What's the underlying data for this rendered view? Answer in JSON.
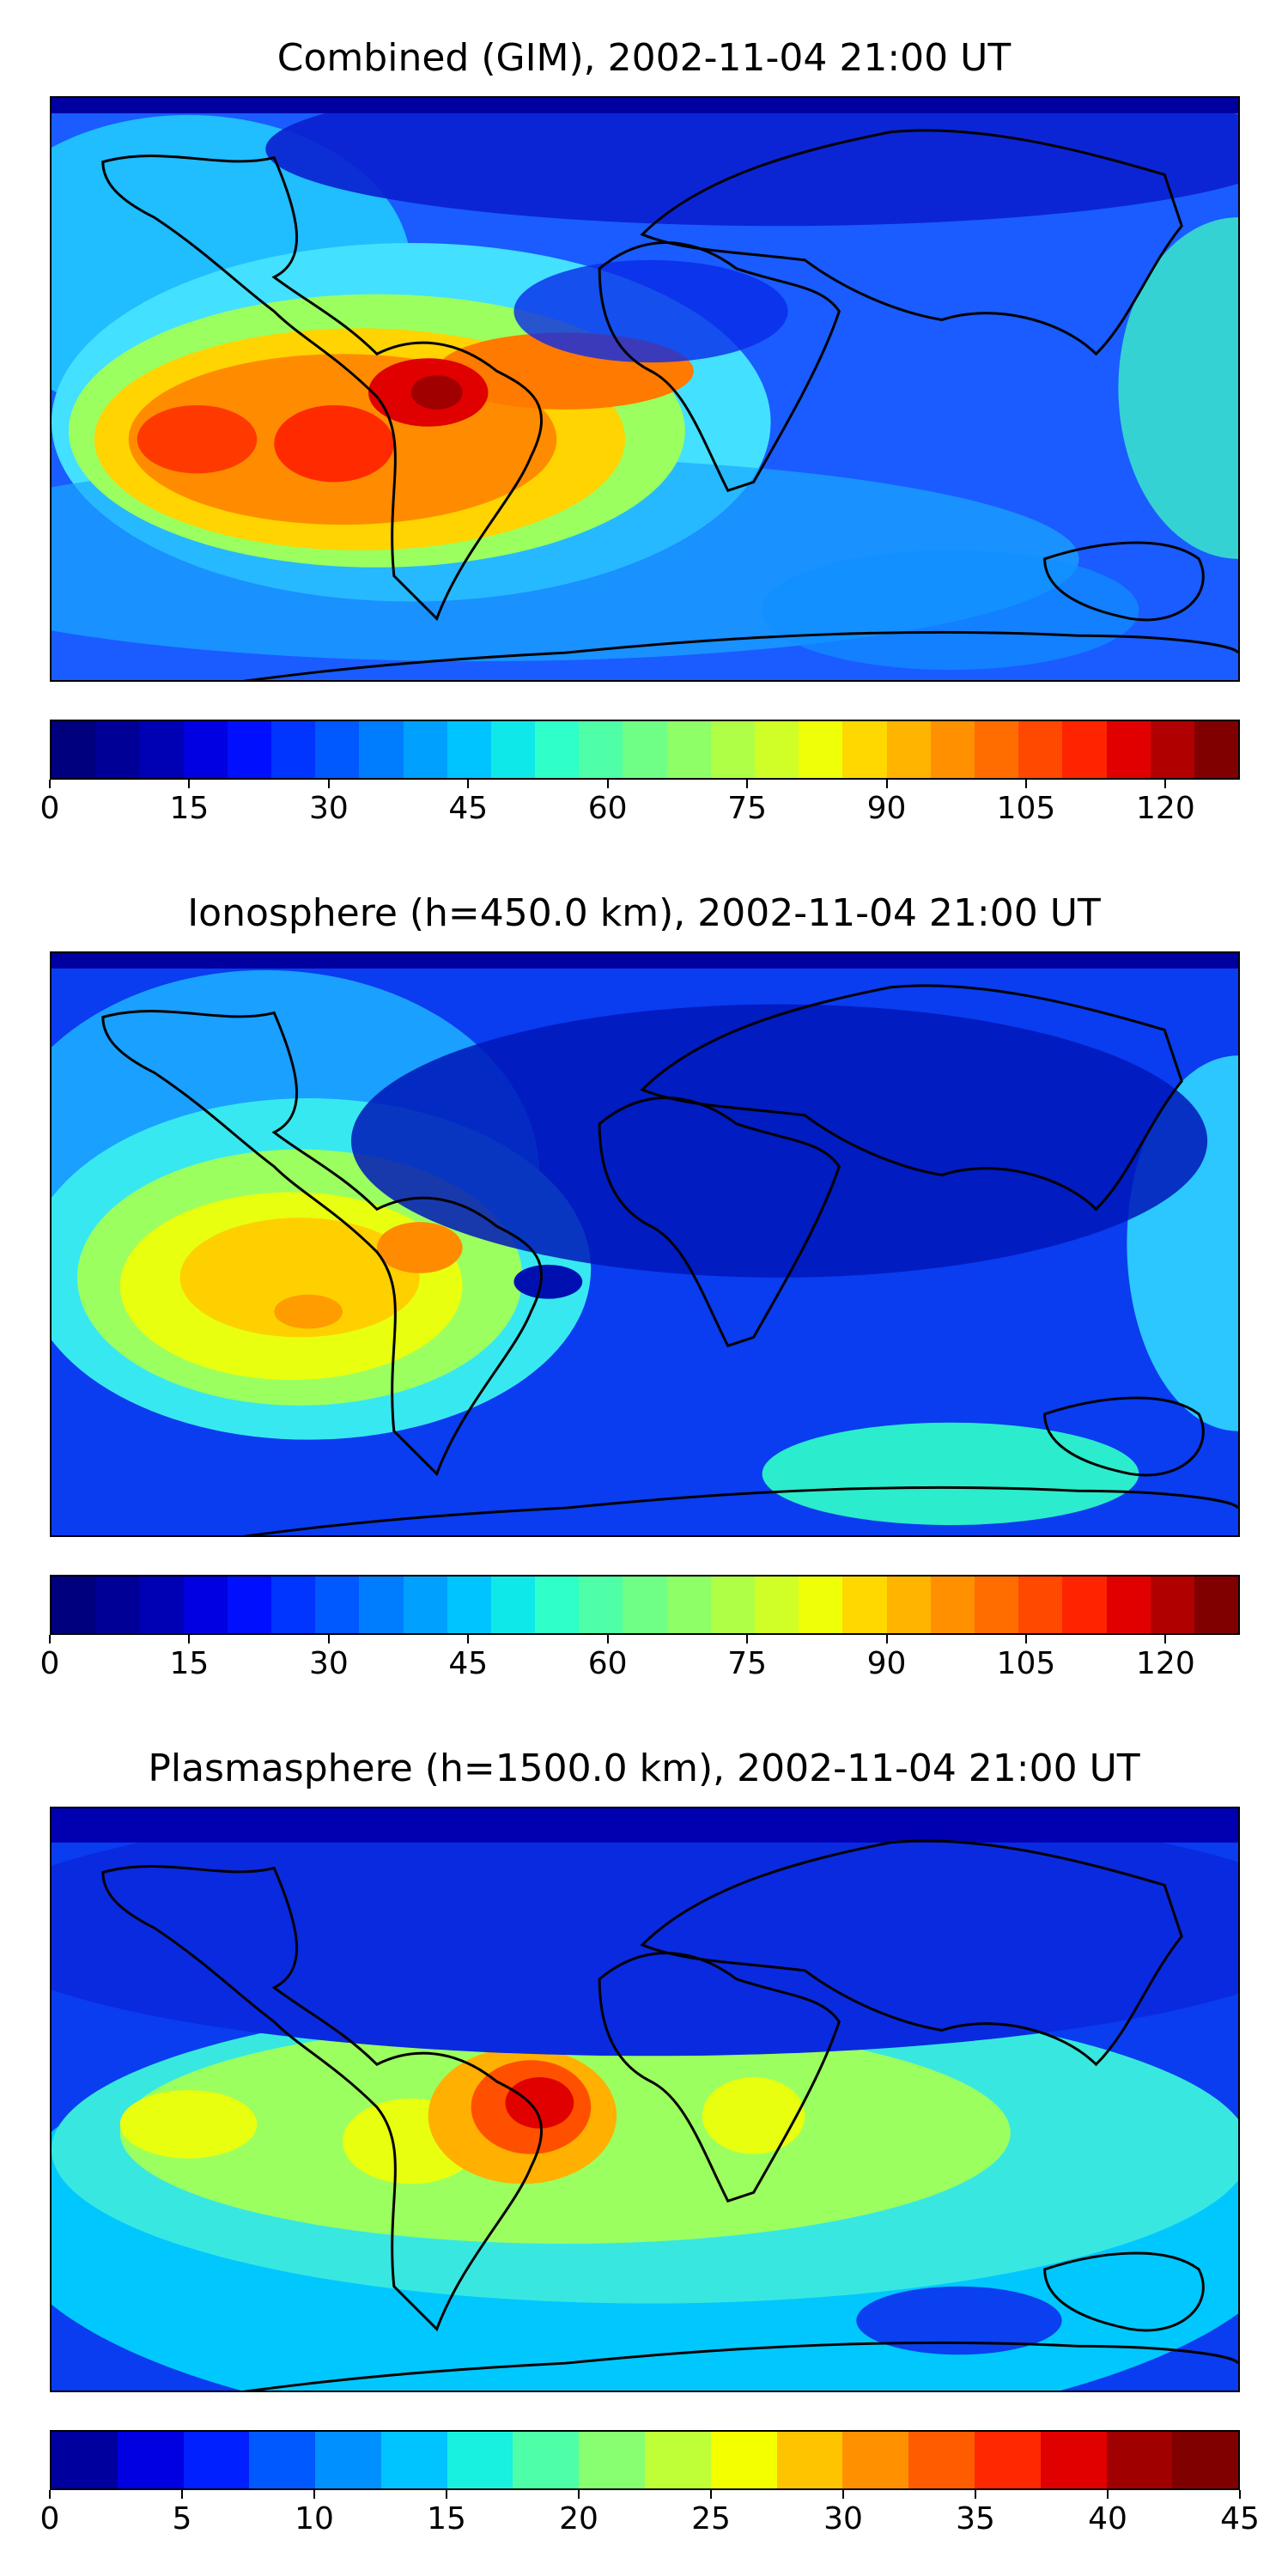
{
  "panels": [
    {
      "title": "Combined (GIM), 2002-11-04 21:00 UT",
      "colorbar": {
        "min": 0,
        "max": 128,
        "ticks": [
          "0",
          "15",
          "30",
          "45",
          "60",
          "75",
          "90",
          "105",
          "120"
        ],
        "tick_values": [
          0,
          15,
          30,
          45,
          60,
          75,
          90,
          105,
          120
        ],
        "levels": 26
      }
    },
    {
      "title": "Ionosphere  (h=450.0 km), 2002-11-04 21:00 UT",
      "colorbar": {
        "min": 0,
        "max": 128,
        "ticks": [
          "0",
          "15",
          "30",
          "45",
          "60",
          "75",
          "90",
          "105",
          "120"
        ],
        "tick_values": [
          0,
          15,
          30,
          45,
          60,
          75,
          90,
          105,
          120
        ],
        "levels": 26
      }
    },
    {
      "title": "Plasmasphere (h=1500.0 km), 2002-11-04 21:00 UT",
      "colorbar": {
        "min": 0,
        "max": 45,
        "ticks": [
          "0",
          "5",
          "10",
          "15",
          "20",
          "25",
          "30",
          "35",
          "40",
          "45"
        ],
        "tick_values": [
          0,
          5,
          10,
          15,
          20,
          25,
          30,
          35,
          40,
          45
        ],
        "levels": 18
      }
    }
  ],
  "colormap": "jet"
}
